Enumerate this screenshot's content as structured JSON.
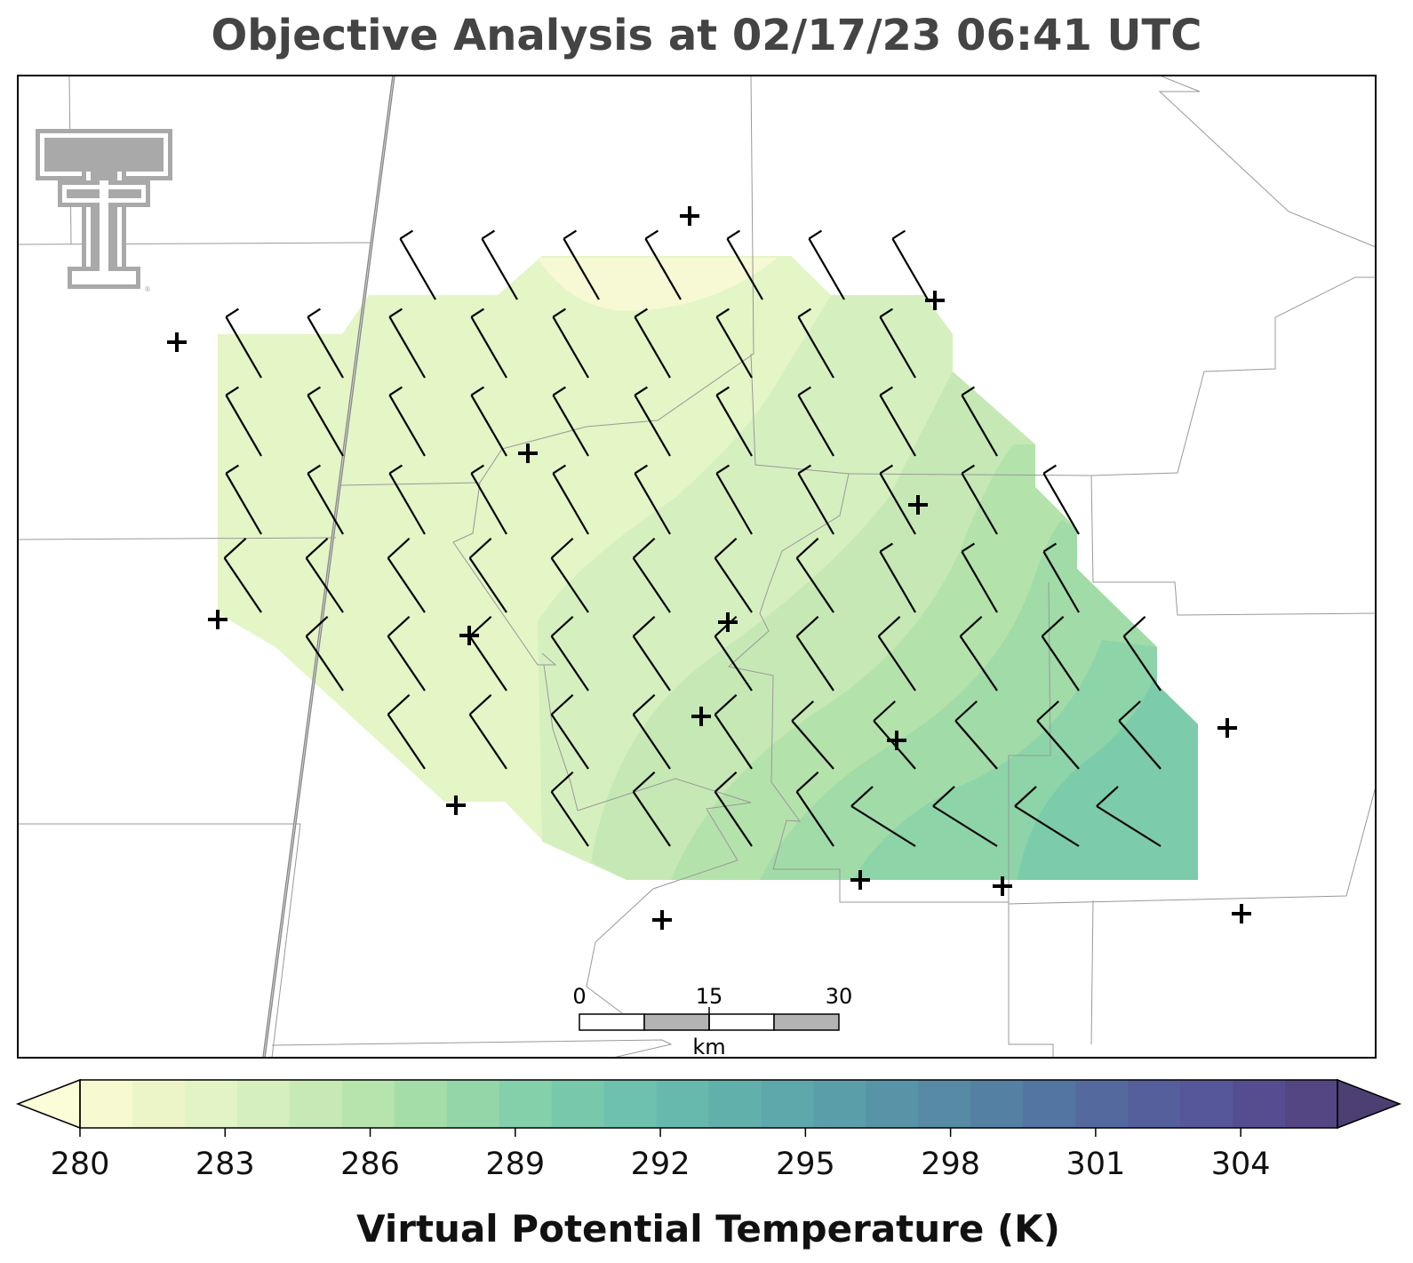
{
  "title": "Objective Analysis at 02/17/23 06:41 UTC",
  "colorbar": {
    "label": "Virtual Potential Temperature (K)",
    "min": 280,
    "max": 306,
    "ticks": [
      "280",
      "283",
      "286",
      "289",
      "292",
      "295",
      "298",
      "301",
      "304"
    ],
    "colors": [
      "#f7f9d0",
      "#ecf5c7",
      "#e2f4c5",
      "#d5efbe",
      "#c7e9b5",
      "#b7e3ac",
      "#a5dda9",
      "#94d6a8",
      "#84d0aa",
      "#78c9ab",
      "#6ec1ad",
      "#67b9ae",
      "#62b0ac",
      "#5ea7aa",
      "#5a9ea9",
      "#5894a7",
      "#568aa5",
      "#5480a3",
      "#5375a1",
      "#546a9f",
      "#555f9c",
      "#56569a",
      "#554d90",
      "#544683"
    ],
    "extend_low_color": "#fbfdd8",
    "extend_high_color": "#4e3f73"
  },
  "scale_bar": {
    "labels": [
      "0",
      "15",
      "30"
    ],
    "unit": "km"
  },
  "logo": "texas-tech-double-t-logo",
  "colors": {
    "border": "#000000",
    "county_lines": "#999999",
    "state_line": "#777777",
    "barb": "#000000",
    "station": "#000000"
  },
  "analysis_field": {
    "variable": "Virtual Potential Temperature",
    "units": "K",
    "regions": [
      {
        "value": 281.2,
        "label": "north-center cool pocket"
      },
      {
        "value": 282.0,
        "label": "western plateau"
      },
      {
        "value": 283.0,
        "label": "central band"
      },
      {
        "value": 284.0,
        "label": "central-east band"
      },
      {
        "value": 285.0,
        "label": "eastern band"
      },
      {
        "value": 286.0,
        "label": "southeastern band"
      },
      {
        "value": 287.0,
        "label": "far southeast"
      },
      {
        "value": 288.0,
        "label": "southeast corner"
      }
    ]
  }
}
